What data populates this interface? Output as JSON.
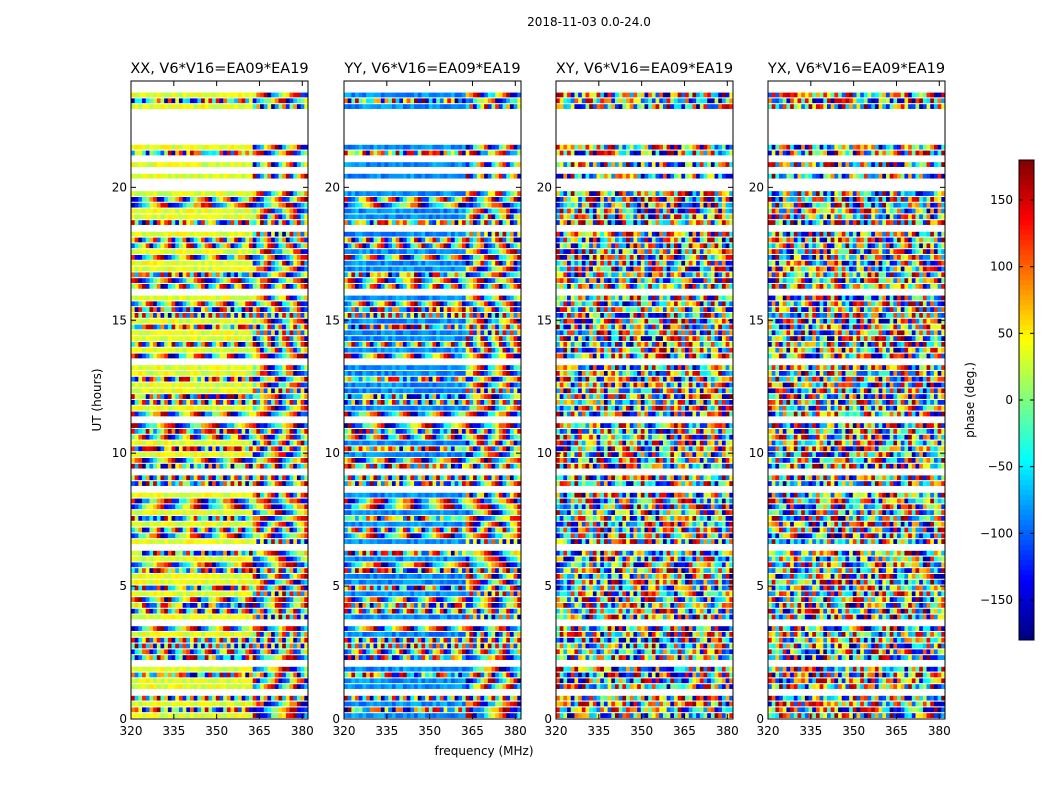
{
  "chart_data": {
    "type": "heatmap",
    "suptitle": "2018-11-03 0.0-24.0",
    "xlabel": "frequency (MHz)",
    "ylabel": "UT (hours)",
    "xlim": [
      320,
      382
    ],
    "ylim": [
      0,
      24
    ],
    "xticks": [
      320,
      335,
      350,
      365,
      380
    ],
    "yticks": [
      0,
      5,
      10,
      15,
      20
    ],
    "panels": [
      {
        "title": "XX, V6*V16=EA09*EA19",
        "pol": "XX",
        "base": 35
      },
      {
        "title": "YY, V6*V16=EA09*EA19",
        "pol": "YY",
        "base": -85
      },
      {
        "title": "XY, V6*V16=EA09*EA19",
        "pol": "XY",
        "base": null
      },
      {
        "title": "YX, V6*V16=EA09*EA19",
        "pol": "YX",
        "base": null
      }
    ],
    "flagged_ut_ranges": [
      [
        21.6,
        22.8
      ],
      [
        0.85,
        0.95
      ],
      [
        7.8,
        7.9
      ],
      [
        15.0,
        15.08
      ],
      [
        17.2,
        17.3
      ],
      [
        8.55,
        8.65
      ]
    ],
    "colorbar": {
      "label": "phase (deg.)",
      "range": [
        -180,
        180
      ],
      "ticks": [
        150,
        100,
        50,
        0,
        -50,
        -100,
        -150
      ],
      "tick_labels": [
        "150",
        "100",
        "50",
        "0",
        "−50",
        "−100",
        "−150"
      ],
      "colormap": "jet"
    }
  }
}
